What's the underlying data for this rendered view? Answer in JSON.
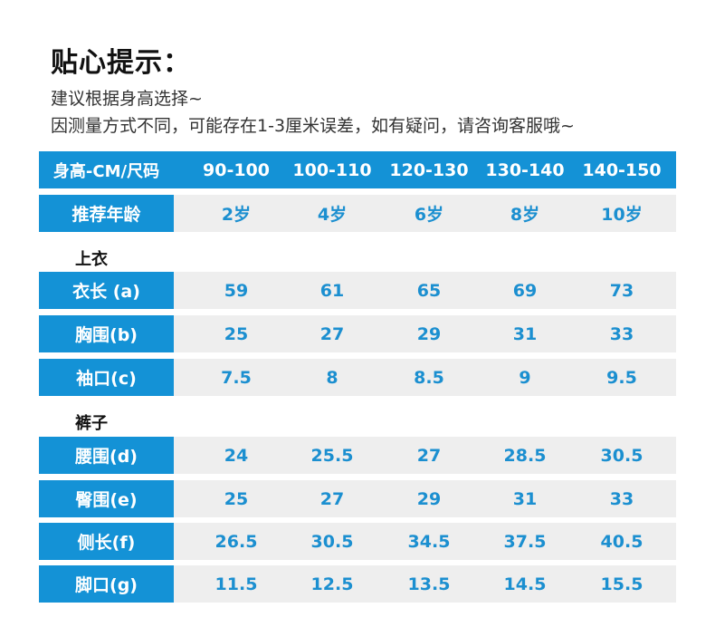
{
  "title": "贴心提示：",
  "notes": [
    "建议根据身高选择~",
    "因测量方式不同，可能存在1-3厘米误差，如有疑问，请咨询客服哦~"
  ],
  "colors": {
    "accent": "#1492d6",
    "cell_bg": "#eeeeee",
    "value_text": "#1b8fd0"
  },
  "header": {
    "label": "身高-CM/尺码",
    "sizes": [
      "90-100",
      "100-110",
      "120-130",
      "130-140",
      "140-150"
    ]
  },
  "age_row": {
    "label": "推荐年龄",
    "values": [
      "2岁",
      "4岁",
      "6岁",
      "8岁",
      "10岁"
    ]
  },
  "sections": {
    "top": {
      "title": "上衣",
      "rows": [
        {
          "label": "衣长 (a)",
          "values": [
            "59",
            "61",
            "65",
            "69",
            "73"
          ]
        },
        {
          "label": "胸围(b)",
          "values": [
            "25",
            "27",
            "29",
            "31",
            "33"
          ]
        },
        {
          "label": "袖口(c)",
          "values": [
            "7.5",
            "8",
            "8.5",
            "9",
            "9.5"
          ]
        }
      ]
    },
    "pants": {
      "title": "裤子",
      "rows": [
        {
          "label": "腰围(d)",
          "values": [
            "24",
            "25.5",
            "27",
            "28.5",
            "30.5"
          ]
        },
        {
          "label": "臀围(e)",
          "values": [
            "25",
            "27",
            "29",
            "31",
            "33"
          ]
        },
        {
          "label": "侧长(f)",
          "values": [
            "26.5",
            "30.5",
            "34.5",
            "37.5",
            "40.5"
          ]
        },
        {
          "label": "脚口(g)",
          "values": [
            "11.5",
            "12.5",
            "13.5",
            "14.5",
            "15.5"
          ]
        }
      ]
    }
  }
}
